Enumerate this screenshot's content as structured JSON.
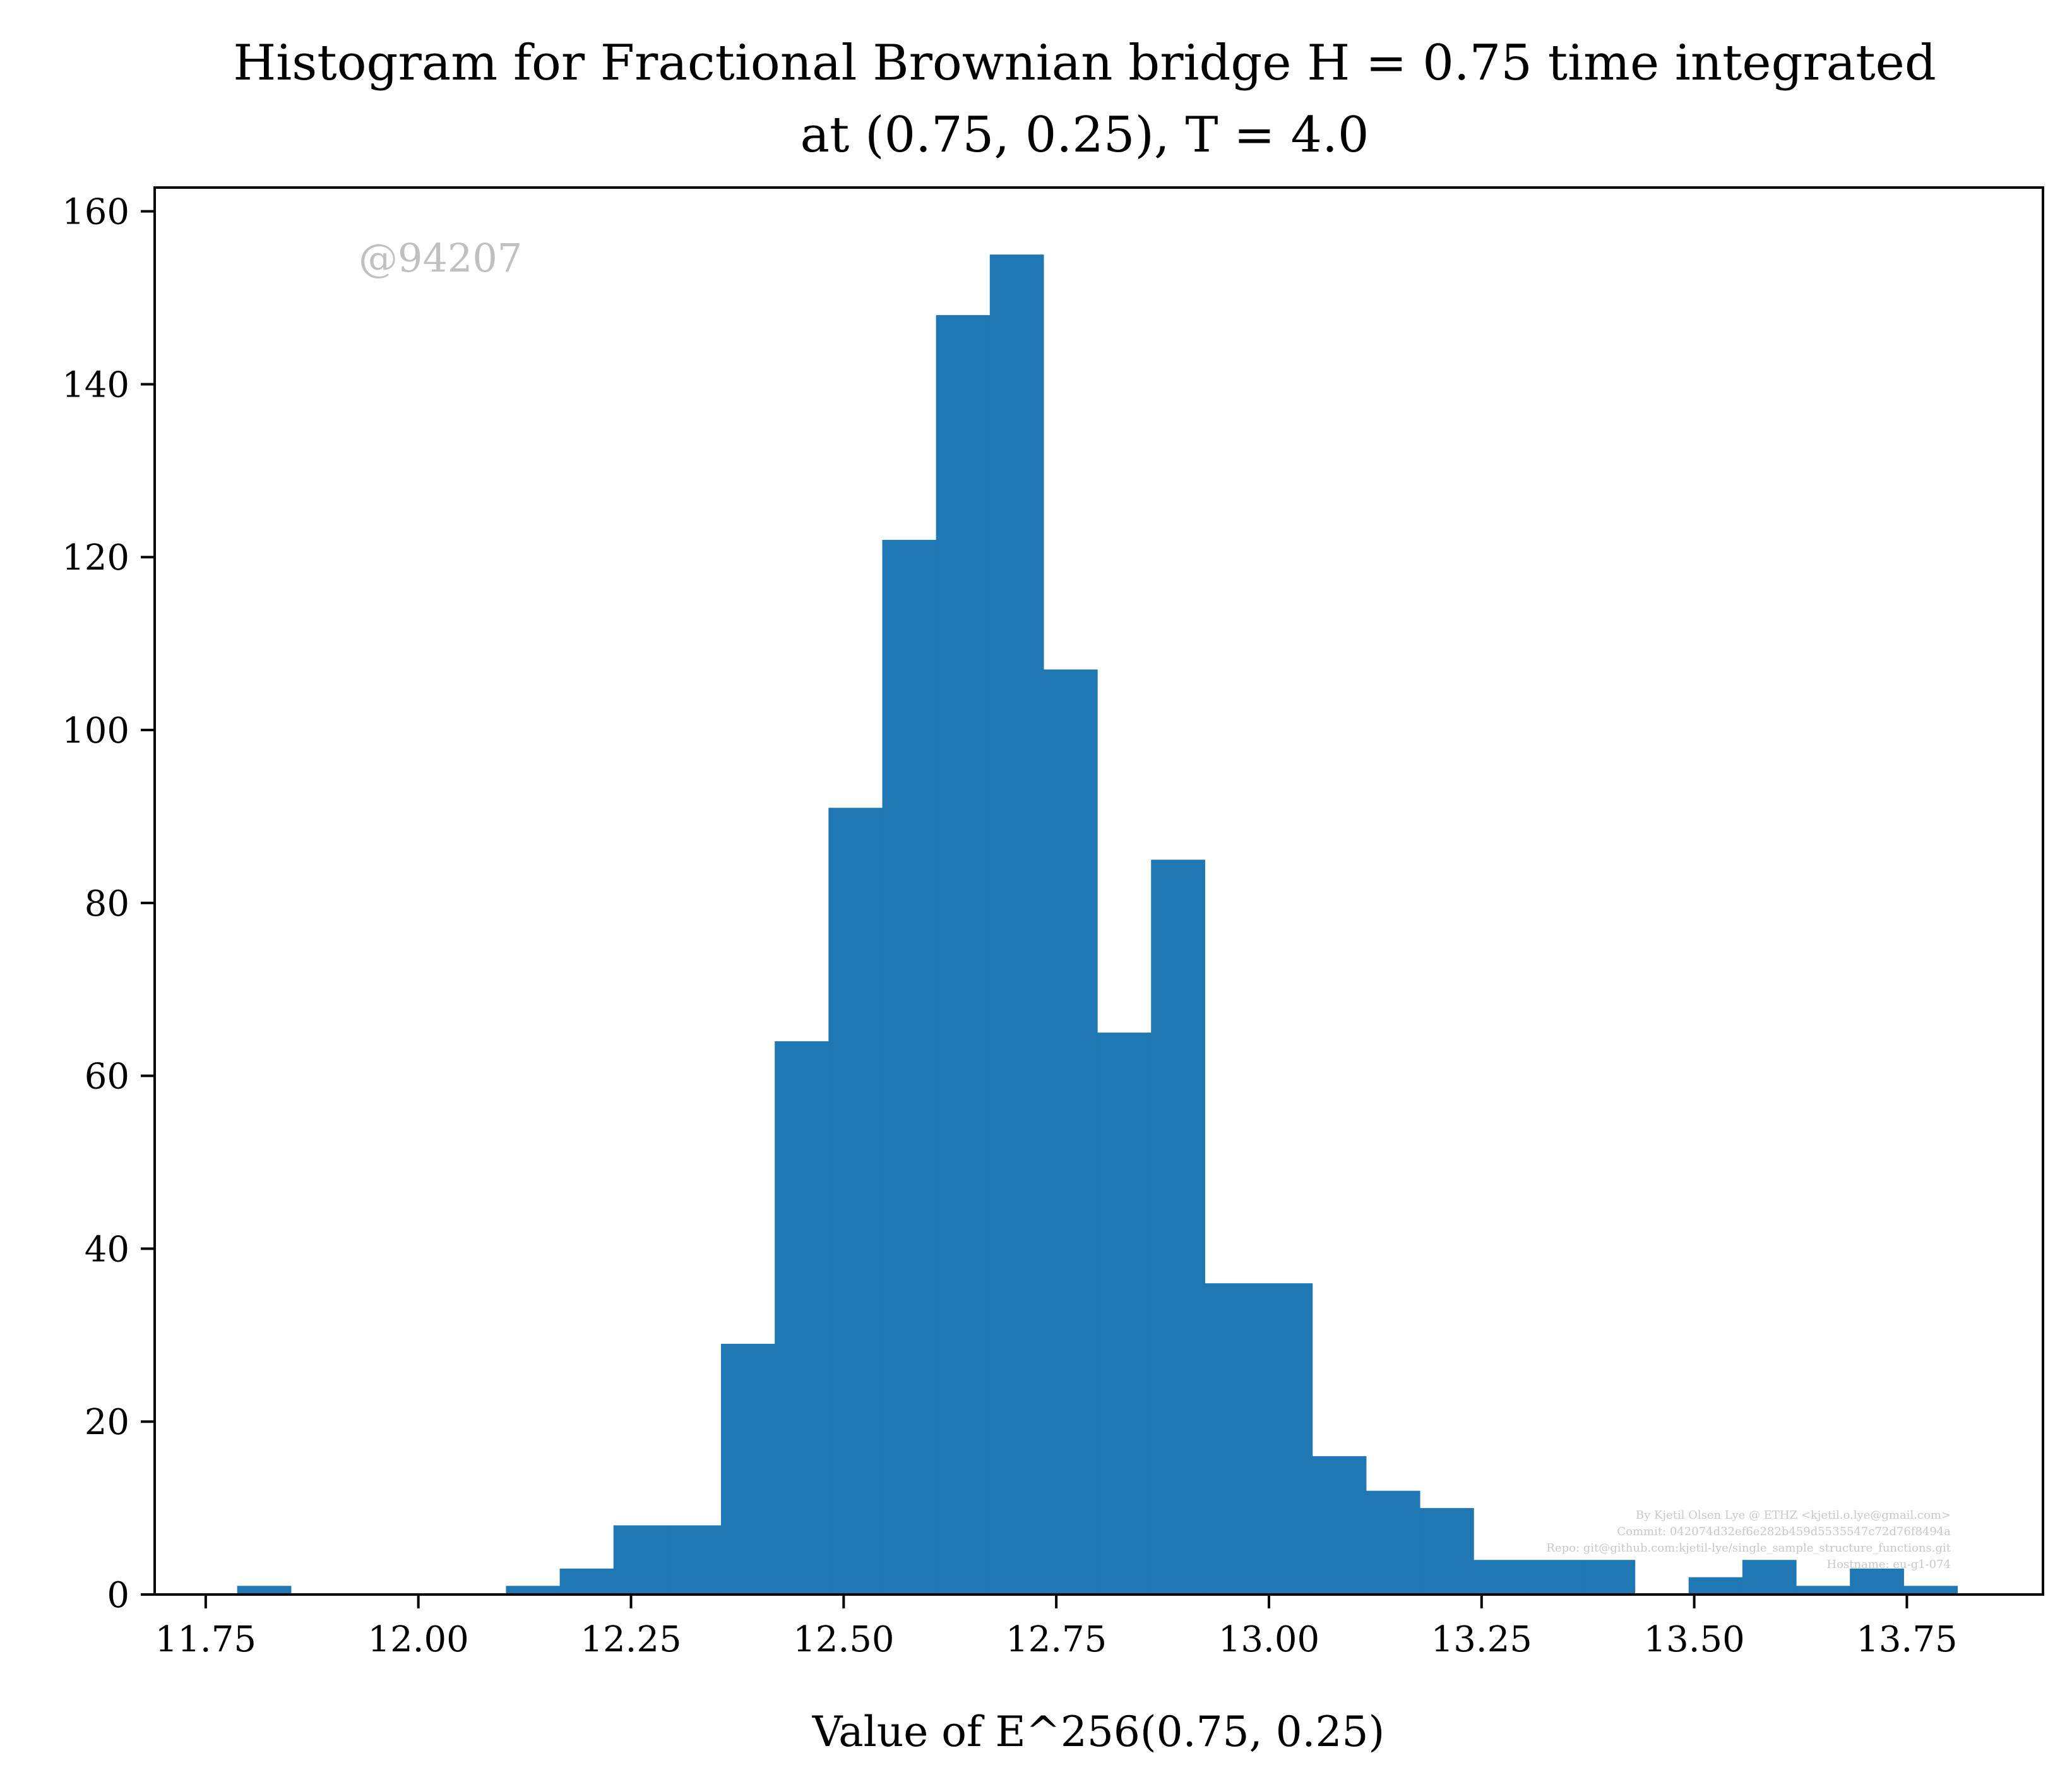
{
  "chart_data": {
    "type": "bar",
    "title_line1": "Histogram for Fractional Brownian bridge H = 0.75 time integrated",
    "title_line2": "at (0.75, 0.25), T = 4.0",
    "xlabel": "Value of E^256(0.75, 0.25)",
    "ylabel": "",
    "xlim": [
      11.69,
      13.91
    ],
    "ylim": [
      0,
      162.75
    ],
    "xticks": [
      11.75,
      12.0,
      12.25,
      12.5,
      12.75,
      13.0,
      13.25,
      13.5,
      13.75
    ],
    "xtick_labels": [
      "11.75",
      "12.00",
      "12.25",
      "12.50",
      "12.75",
      "13.00",
      "13.25",
      "13.50",
      "13.75"
    ],
    "yticks": [
      0,
      20,
      40,
      60,
      80,
      100,
      120,
      140,
      160
    ],
    "ytick_labels": [
      "0",
      "20",
      "40",
      "60",
      "80",
      "100",
      "120",
      "140",
      "160"
    ],
    "grid": false,
    "bar_color": "#1f77b4",
    "bins": {
      "start": 11.787,
      "width": 0.0632,
      "counts": [
        1,
        0,
        0,
        0,
        0,
        1,
        3,
        8,
        8,
        29,
        64,
        91,
        122,
        148,
        155,
        107,
        65,
        85,
        36,
        36,
        16,
        12,
        10,
        4,
        4,
        4,
        0,
        2,
        4,
        1,
        3,
        1
      ]
    },
    "watermark": "@94207",
    "credit_lines": [
      "By Kjetil Olsen Lye @ ETHZ <kjetil.o.lye@gmail.com>",
      "Commit: 042074d32ef6e282b459d5535547c72d76f8494a",
      "Repo: git@github.com:kjetil-lye/single_sample_structure_functions.git",
      "Hostname: eu-g1-074"
    ]
  }
}
